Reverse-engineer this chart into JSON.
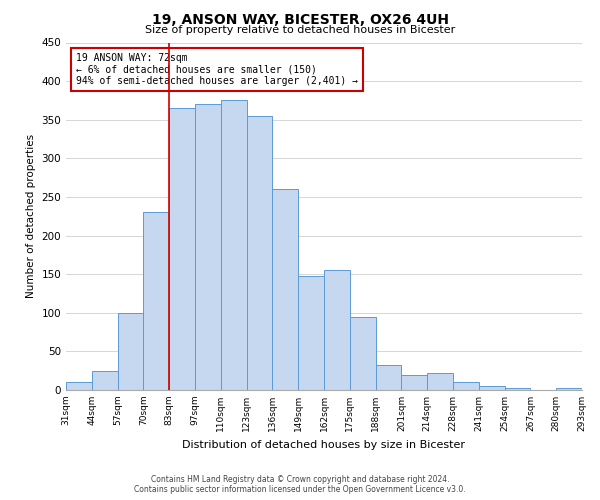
{
  "title": "19, ANSON WAY, BICESTER, OX26 4UH",
  "subtitle": "Size of property relative to detached houses in Bicester",
  "xlabel": "Distribution of detached houses by size in Bicester",
  "ylabel": "Number of detached properties",
  "bar_labels": [
    "31sqm",
    "44sqm",
    "57sqm",
    "70sqm",
    "83sqm",
    "97sqm",
    "110sqm",
    "123sqm",
    "136sqm",
    "149sqm",
    "162sqm",
    "175sqm",
    "188sqm",
    "201sqm",
    "214sqm",
    "228sqm",
    "241sqm",
    "254sqm",
    "267sqm",
    "280sqm",
    "293sqm"
  ],
  "bar_values": [
    10,
    25,
    100,
    230,
    365,
    370,
    375,
    355,
    260,
    147,
    155,
    95,
    32,
    20,
    22,
    10,
    5,
    3,
    0,
    2
  ],
  "bar_color": "#c5d8f0",
  "bar_edge_color": "#5b9bd5",
  "ylim": [
    0,
    450
  ],
  "yticks": [
    0,
    50,
    100,
    150,
    200,
    250,
    300,
    350,
    400,
    450
  ],
  "vline_bin_index": 3,
  "annotation_title": "19 ANSON WAY: 72sqm",
  "annotation_line1": "← 6% of detached houses are smaller (150)",
  "annotation_line2": "94% of semi-detached houses are larger (2,401) →",
  "annotation_box_color": "#ffffff",
  "annotation_border_color": "#cc0000",
  "footer_line1": "Contains HM Land Registry data © Crown copyright and database right 2024.",
  "footer_line2": "Contains public sector information licensed under the Open Government Licence v3.0.",
  "background_color": "#ffffff",
  "grid_color": "#d0d0d0"
}
